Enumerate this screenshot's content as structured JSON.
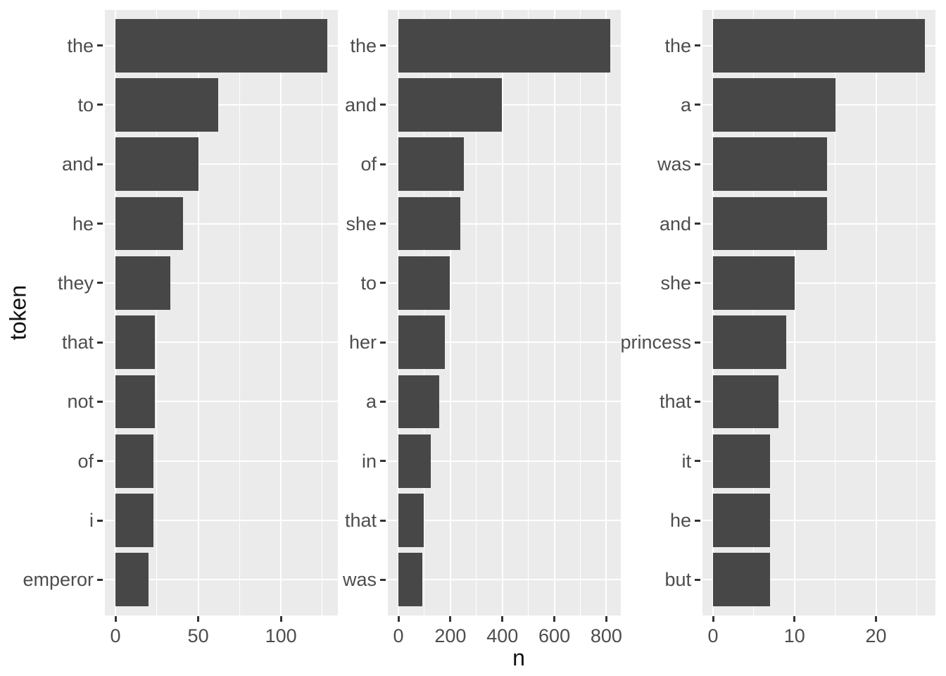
{
  "figure": {
    "y_axis_title": "token",
    "x_axis_title": "n"
  },
  "colors": {
    "bar_fill": "#474747",
    "panel_background": "#EBEBEB",
    "gridline": "#FFFFFF",
    "axis_text": "#4D4D4D",
    "axis_title": "#111111",
    "tick_mark": "#333333"
  },
  "chart_data": [
    {
      "type": "bar",
      "orientation": "horizontal",
      "facet": "left",
      "ylabel": "token",
      "categories": [
        "the",
        "to",
        "and",
        "he",
        "they",
        "that",
        "not",
        "of",
        "i",
        "emperor"
      ],
      "values": [
        128,
        62,
        50,
        41,
        33,
        24,
        24,
        23,
        23,
        20
      ],
      "x_major_ticks": [
        0,
        50,
        100
      ],
      "x_tick_step": 50,
      "xlim": [
        -6.4,
        140.8
      ],
      "grid": "white-on-gray",
      "legend": false
    },
    {
      "type": "bar",
      "orientation": "horizontal",
      "facet": "middle",
      "xlabel": "n",
      "categories": [
        "the",
        "and",
        "of",
        "she",
        "to",
        "her",
        "a",
        "in",
        "that",
        "was"
      ],
      "values": [
        815,
        398,
        251,
        238,
        197,
        178,
        157,
        124,
        97,
        92
      ],
      "x_major_ticks": [
        0,
        200,
        400,
        600,
        800
      ],
      "x_tick_step": 200,
      "xlim": [
        -40.8,
        897
      ],
      "grid": "white-on-gray",
      "legend": false
    },
    {
      "type": "bar",
      "orientation": "horizontal",
      "facet": "right",
      "categories": [
        "the",
        "a",
        "was",
        "and",
        "she",
        "princess",
        "that",
        "it",
        "he",
        "but"
      ],
      "values": [
        26,
        15,
        14,
        14,
        10,
        9,
        8,
        7,
        7,
        7
      ],
      "x_major_ticks": [
        0,
        10,
        20
      ],
      "x_tick_step": 10,
      "xlim": [
        -1.3,
        28.6
      ],
      "grid": "white-on-gray",
      "legend": false
    }
  ]
}
